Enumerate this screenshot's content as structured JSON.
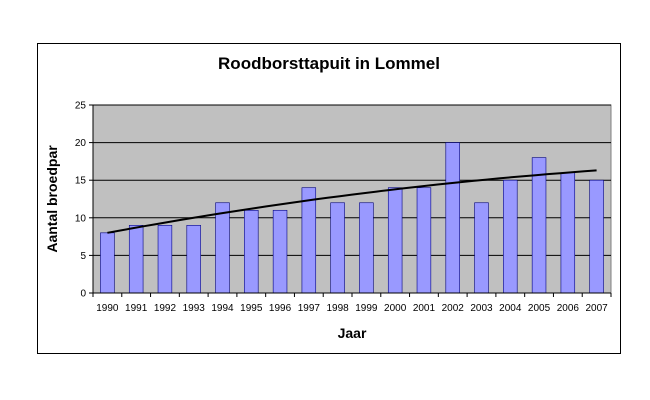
{
  "chart_data": {
    "type": "bar",
    "title": "Roodborsttapuit in Lommel",
    "xlabel": "Jaar",
    "ylabel": "Aantal broedpar",
    "ylim": [
      0,
      25
    ],
    "yticks": [
      0,
      5,
      10,
      15,
      20,
      25
    ],
    "categories": [
      "1990",
      "1991",
      "1992",
      "1993",
      "1994",
      "1995",
      "1996",
      "1997",
      "1998",
      "1999",
      "2000",
      "2001",
      "2002",
      "2003",
      "2004",
      "2005",
      "2006",
      "2007"
    ],
    "series": [
      {
        "values": [
          8,
          9,
          9,
          9,
          12,
          11,
          11,
          14,
          12,
          12,
          14,
          14,
          20,
          12,
          15,
          18,
          16,
          15
        ]
      }
    ],
    "trendline": {
      "type": "polynomial",
      "start": 8.0,
      "end": 16.3
    },
    "grid": true,
    "legend": "none",
    "colors": {
      "bar_fill": "#9999ff",
      "bar_stroke": "#000080",
      "plot_bg": "#c0c0c0",
      "trend": "#000000"
    }
  }
}
